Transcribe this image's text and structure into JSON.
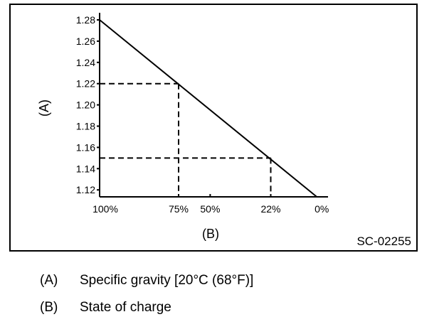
{
  "chart_data": {
    "type": "line",
    "xlabel": "(B)",
    "ylabel": "(A)",
    "code": "SC-02255",
    "ylim": [
      1.11,
      1.285
    ],
    "yticks": [
      "1.28",
      "1.26",
      "1.24",
      "1.22",
      "1.20",
      "1.18",
      "1.16",
      "1.14",
      "1.12"
    ],
    "xticks": [
      {
        "label": "100%",
        "soc": 100,
        "sg": 1.28
      },
      {
        "label": "75%",
        "soc": 75,
        "sg": 1.22
      },
      {
        "label": "50%",
        "soc": 50,
        "sg": 1.196
      },
      {
        "label": "22%",
        "soc": 22,
        "sg": 1.15
      },
      {
        "label": "0%",
        "soc": 0,
        "sg": 1.115
      }
    ],
    "series": [
      {
        "name": "Specific gravity vs state of charge",
        "points": [
          {
            "soc": 100,
            "sg": 1.28
          },
          {
            "soc": 0,
            "sg": 1.115
          }
        ]
      }
    ],
    "guides": [
      {
        "soc": 75,
        "sg": 1.22
      },
      {
        "soc": 22,
        "sg": 1.15
      }
    ]
  },
  "legend": [
    {
      "key": "(A)",
      "text": "Specific gravity [20°C (68°F)]"
    },
    {
      "key": "(B)",
      "text": "State of charge"
    }
  ]
}
